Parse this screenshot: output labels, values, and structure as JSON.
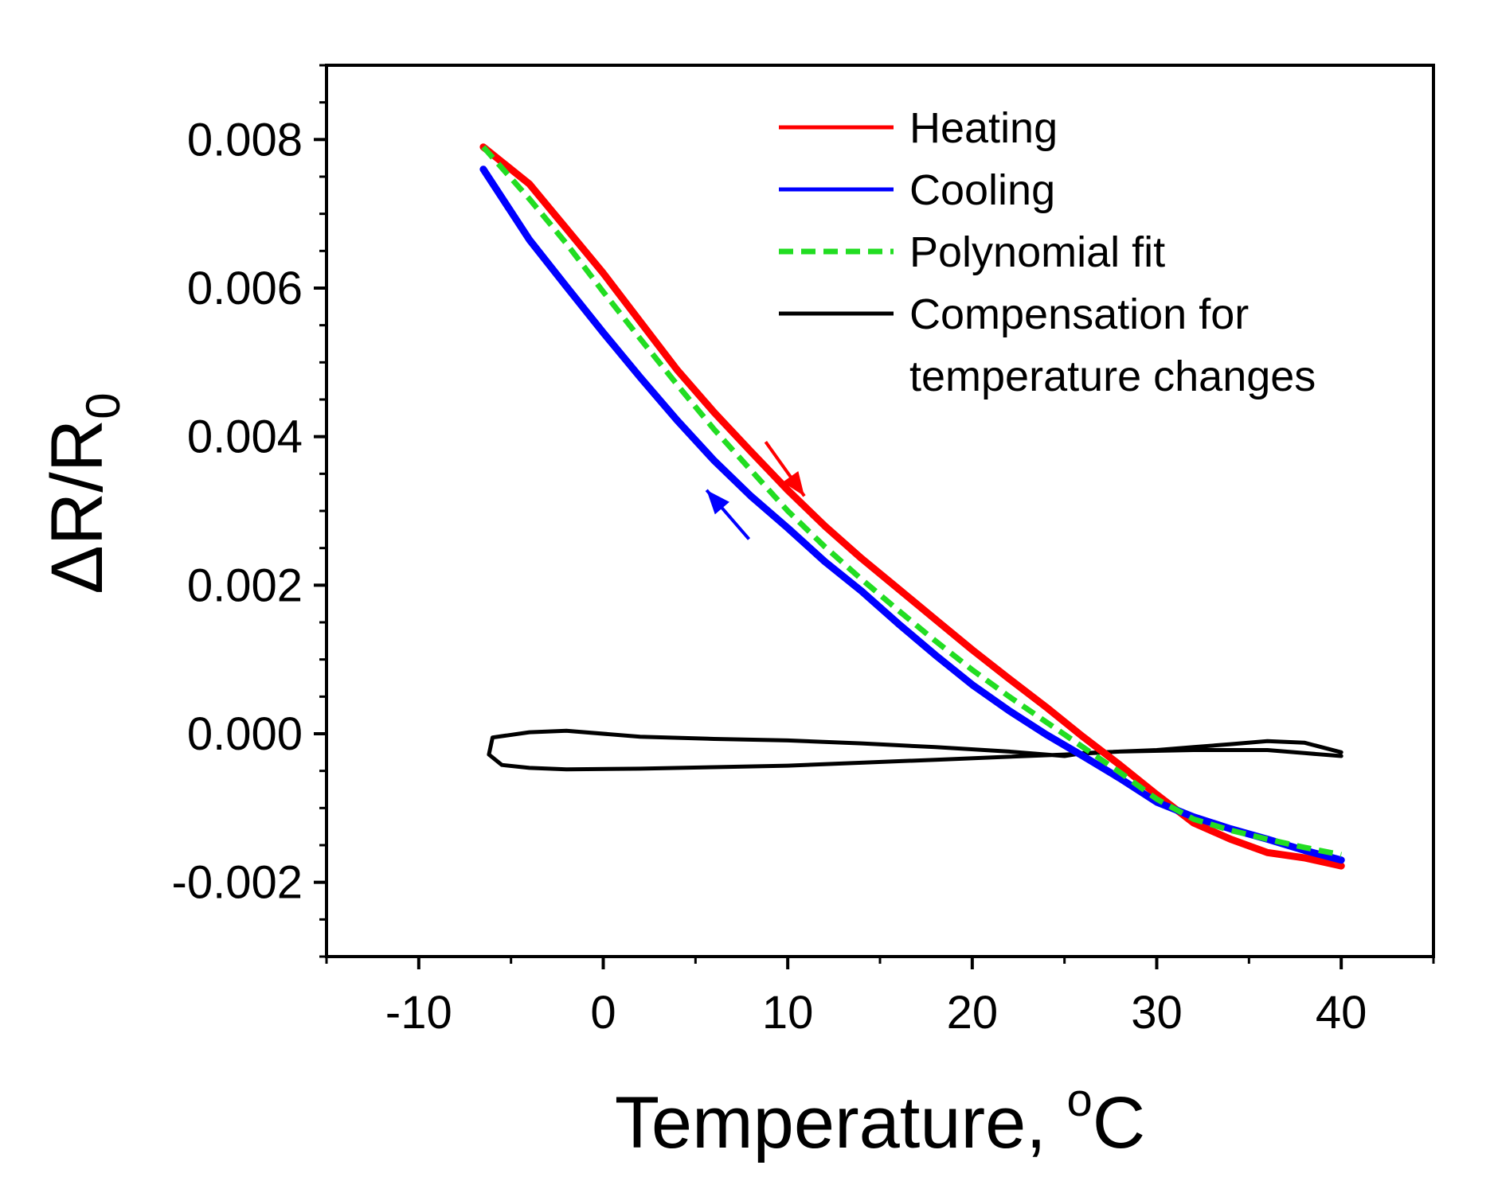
{
  "chart_data": {
    "type": "line",
    "title": "",
    "xlabel": "Temperature, ",
    "xlabel_sup": "o",
    "xlabel_unit": "C",
    "ylabel_main": "ΔR/R",
    "ylabel_sub": "0",
    "xlim": [
      -15,
      45
    ],
    "ylim": [
      -0.003,
      0.009
    ],
    "xticks": [
      -10,
      0,
      10,
      20,
      30,
      40
    ],
    "xtick_labels": [
      "-10",
      "0",
      "10",
      "20",
      "30",
      "40"
    ],
    "yticks": [
      -0.002,
      0.0,
      0.002,
      0.004,
      0.006,
      0.008
    ],
    "ytick_labels": [
      "-0.002",
      "0.000",
      "0.002",
      "0.004",
      "0.006",
      "0.008"
    ],
    "legend_position": "top-right",
    "series": [
      {
        "name": "Heating",
        "color": "#ff0000",
        "style": "solid",
        "x": [
          -6.5,
          -4,
          -2,
          0,
          2,
          4,
          6,
          8,
          10,
          12,
          14,
          16,
          18,
          20,
          22,
          24,
          26,
          28,
          30,
          32,
          34,
          36,
          38,
          40
        ],
        "y": [
          0.0079,
          0.0074,
          0.0068,
          0.0062,
          0.00555,
          0.0049,
          0.00433,
          0.0038,
          0.00328,
          0.0028,
          0.00236,
          0.00195,
          0.00154,
          0.00113,
          0.00074,
          0.00036,
          -4e-05,
          -0.00042,
          -0.00082,
          -0.0012,
          -0.00142,
          -0.0016,
          -0.00167,
          -0.00178
        ]
      },
      {
        "name": "Cooling",
        "color": "#0000ff",
        "style": "solid",
        "x": [
          40,
          38,
          36,
          34,
          32,
          30,
          28,
          26,
          24,
          22,
          20,
          18,
          16,
          14,
          12,
          10,
          8,
          6,
          4,
          2,
          0,
          -2,
          -4,
          -6.5
        ],
        "y": [
          -0.0017,
          -0.00157,
          -0.00142,
          -0.00128,
          -0.00112,
          -0.00092,
          -0.0006,
          -0.0003,
          -1e-05,
          0.00031,
          0.00066,
          0.00106,
          0.00148,
          0.00192,
          0.00232,
          0.00277,
          0.0032,
          0.00368,
          0.00422,
          0.0048,
          0.0054,
          0.00602,
          0.00665,
          0.0076
        ]
      },
      {
        "name": "Polynomial fit",
        "color": "#22dd22",
        "style": "dashed",
        "x": [
          -6.5,
          -4,
          -2,
          0,
          2,
          4,
          6,
          8,
          10,
          12,
          14,
          16,
          18,
          20,
          22,
          24,
          26,
          28,
          30,
          32,
          34,
          36,
          38,
          40
        ],
        "y": [
          0.0079,
          0.0072,
          0.0066,
          0.00595,
          0.00532,
          0.0047,
          0.0041,
          0.00355,
          0.003,
          0.00252,
          0.00208,
          0.00166,
          0.00125,
          0.00086,
          0.0005,
          0.00016,
          -0.00018,
          -0.00052,
          -0.00088,
          -0.00115,
          -0.0013,
          -0.00142,
          -0.00153,
          -0.00163
        ]
      },
      {
        "name": "Compensation for temperature changes",
        "legend_lines": [
          "Compensation for",
          "temperature changes"
        ],
        "color": "#000000",
        "style": "solid",
        "x": [
          40,
          38,
          36,
          34,
          32,
          30,
          28,
          26,
          25,
          22,
          18,
          14,
          10,
          6,
          2,
          -2,
          -4,
          -6,
          -6.2,
          -5.5,
          -4,
          -2,
          2,
          6,
          10,
          14,
          18,
          22,
          25,
          28,
          32,
          36,
          38,
          40
        ],
        "y": [
          -0.00025,
          -0.00012,
          -0.0001,
          -0.00014,
          -0.00018,
          -0.00022,
          -0.00024,
          -0.00026,
          -0.0003,
          -0.00024,
          -0.00018,
          -0.00013,
          -9e-05,
          -7e-05,
          -4e-05,
          4e-05,
          2e-05,
          -5e-05,
          -0.00028,
          -0.00042,
          -0.00046,
          -0.00048,
          -0.00047,
          -0.00045,
          -0.00043,
          -0.00039,
          -0.00035,
          -0.00031,
          -0.00028,
          -0.00024,
          -0.00022,
          -0.00022,
          -0.00026,
          -0.0003
        ]
      }
    ],
    "annotations": [
      {
        "type": "arrow",
        "label": "heating direction",
        "color": "#ff0000",
        "from": [
          8.8,
          0.00393
        ],
        "to": [
          10.9,
          0.0032
        ]
      },
      {
        "type": "arrow",
        "label": "cooling direction",
        "color": "#0000ff",
        "from": [
          7.9,
          0.00262
        ],
        "to": [
          5.6,
          0.00328
        ]
      }
    ]
  }
}
